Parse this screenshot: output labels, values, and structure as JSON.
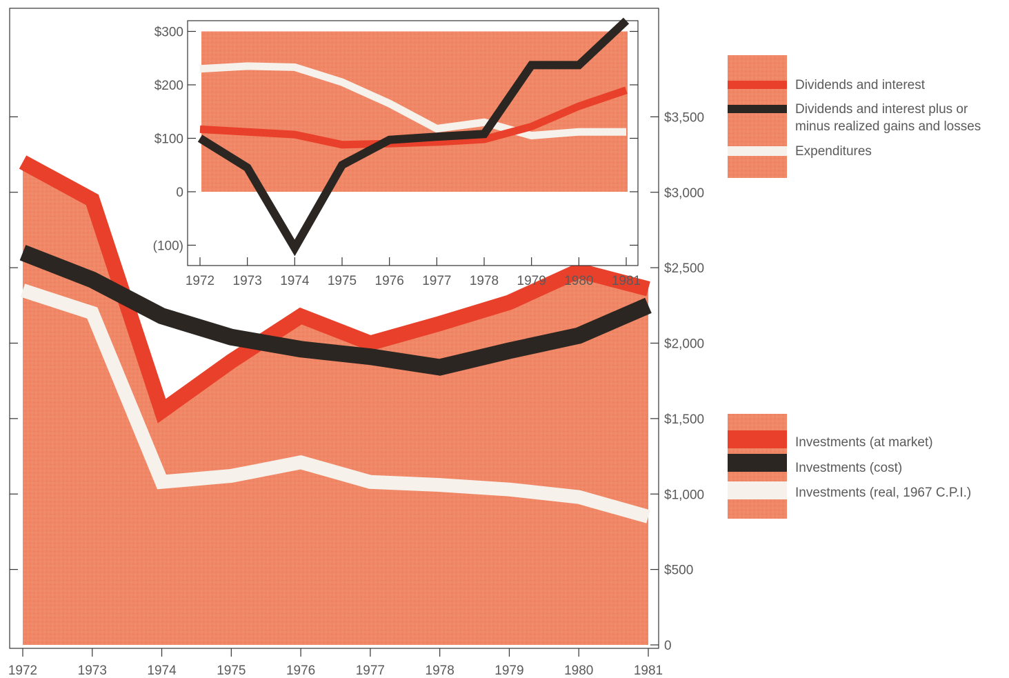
{
  "chart_data": [
    {
      "id": "investments",
      "type": "line",
      "title": "",
      "xlabel": "",
      "ylabel": "",
      "x": [
        1972,
        1973,
        1974,
        1975,
        1976,
        1977,
        1978,
        1979,
        1980,
        1981
      ],
      "ylim": [
        0,
        4000
      ],
      "yticks": [
        0,
        500,
        1000,
        1500,
        2000,
        2500,
        3000,
        3500
      ],
      "ytick_labels": [
        "0",
        "$500",
        "$1,000",
        "$1,500",
        "$2,000",
        "$2,500",
        "$3,000",
        "$3,500"
      ],
      "xtick_labels": [
        "1972",
        "1973",
        "1974",
        "1975",
        "1976",
        "1977",
        "1978",
        "1979",
        "1980",
        "1981"
      ],
      "series": [
        {
          "name": "Investments (at market)",
          "color": "#e8402a",
          "values": [
            3200,
            2950,
            1550,
            1880,
            2180,
            2000,
            2130,
            2270,
            2480,
            2360
          ]
        },
        {
          "name": "Investments (cost)",
          "color": "#2b2622",
          "values": [
            2600,
            2420,
            2180,
            2040,
            1960,
            1910,
            1840,
            1950,
            2050,
            2250
          ]
        },
        {
          "name": "Investments (real, 1967 C.P.I.)",
          "color": "#f6f1ea",
          "values": [
            2350,
            2200,
            1080,
            1120,
            1210,
            1080,
            1060,
            1030,
            980,
            850
          ]
        }
      ],
      "area_color": "#f08766",
      "legend": "right"
    },
    {
      "id": "income",
      "type": "line",
      "title": "",
      "xlabel": "",
      "ylabel": "",
      "x": [
        1972,
        1973,
        1974,
        1975,
        1976,
        1977,
        1978,
        1979,
        1980,
        1981
      ],
      "ylim": [
        -130,
        310
      ],
      "yticks": [
        -100,
        0,
        100,
        200,
        300
      ],
      "ytick_labels": [
        "(100)",
        "0",
        "$100",
        "$200",
        "$300"
      ],
      "xtick_labels": [
        "1972",
        "1973",
        "1974",
        "1975",
        "1976",
        "1977",
        "1978",
        "1979",
        "1980",
        "1981"
      ],
      "series": [
        {
          "name": "Dividends and interest",
          "color": "#e8402a",
          "values": [
            117,
            112,
            107,
            88,
            90,
            93,
            98,
            122,
            160,
            190
          ]
        },
        {
          "name": "Dividends and interest plus or minus realized gains and losses",
          "color": "#2b2622",
          "values": [
            100,
            45,
            -105,
            50,
            97,
            103,
            108,
            237,
            237,
            320
          ]
        },
        {
          "name": "Expenditures",
          "color": "#f6f1ea",
          "values": [
            230,
            235,
            233,
            205,
            165,
            118,
            130,
            105,
            112,
            112
          ]
        }
      ],
      "area_color": "#f08766",
      "legend": "right"
    }
  ]
}
